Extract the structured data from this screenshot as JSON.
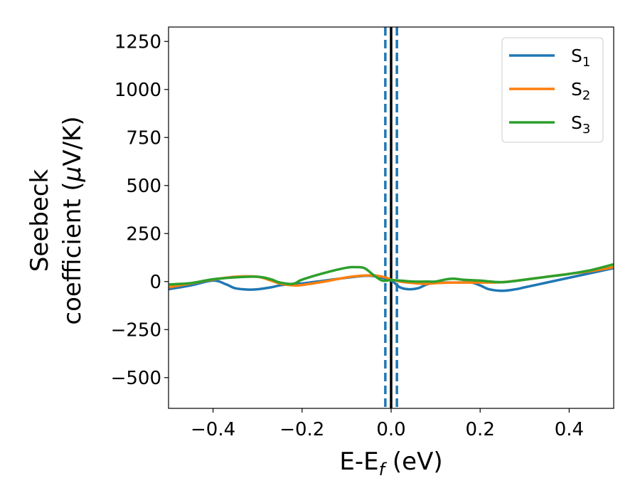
{
  "chart_data": {
    "type": "line",
    "xlabel": {
      "main": "E-E",
      "sub": "f",
      "unit": " (eV)"
    },
    "ylabel": {
      "line1": "Seebeck",
      "line2_prefix": "coefficient  (",
      "mu": "μ",
      "line2_suffix": "V/K)"
    },
    "xlim": [
      -0.5,
      0.5
    ],
    "ylim": [
      -660,
      1325
    ],
    "xticks": [
      -0.4,
      -0.2,
      0.0,
      0.2,
      0.4
    ],
    "xtick_labels": [
      "−0.4",
      "−0.2",
      "0.0",
      "0.2",
      "0.4"
    ],
    "yticks": [
      -500,
      -250,
      0,
      250,
      500,
      750,
      1000,
      1250
    ],
    "ytick_labels": [
      "−500",
      "−250",
      "0",
      "250",
      "500",
      "750",
      "1000",
      "1250"
    ],
    "legend_position": "top-right",
    "vertical_lines": [
      {
        "x": 0.0,
        "style": "solid",
        "color": "#000000"
      },
      {
        "x": -0.013,
        "style": "dashed",
        "color": "#1f77b4"
      },
      {
        "x": 0.013,
        "style": "dashed",
        "color": "#1f77b4"
      }
    ],
    "series": [
      {
        "name": "S",
        "sub": "1",
        "color": "#1f77b4",
        "x": [
          -0.5,
          -0.45,
          -0.4,
          -0.37,
          -0.35,
          -0.32,
          -0.3,
          -0.27,
          -0.25,
          -0.22,
          -0.2,
          -0.15,
          -0.1,
          -0.07,
          -0.05,
          -0.03,
          0.0,
          0.02,
          0.04,
          0.06,
          0.08,
          0.1,
          0.12,
          0.15,
          0.18,
          0.2,
          0.22,
          0.25,
          0.28,
          0.3,
          0.35,
          0.4,
          0.45,
          0.5
        ],
        "y": [
          -40,
          -20,
          5,
          -15,
          -35,
          -42,
          -40,
          -30,
          -20,
          -12,
          -10,
          5,
          20,
          28,
          30,
          25,
          5,
          -30,
          -40,
          -35,
          -15,
          -5,
          -5,
          -5,
          -5,
          -20,
          -40,
          -48,
          -40,
          -30,
          -5,
          20,
          45,
          70
        ]
      },
      {
        "name": "S",
        "sub": "2",
        "color": "#ff7f0e",
        "x": [
          -0.5,
          -0.45,
          -0.4,
          -0.35,
          -0.3,
          -0.27,
          -0.25,
          -0.22,
          -0.2,
          -0.15,
          -0.1,
          -0.07,
          -0.05,
          -0.03,
          -0.01,
          0.0,
          0.02,
          0.05,
          0.08,
          0.1,
          0.15,
          0.2,
          0.25,
          0.3,
          0.35,
          0.4,
          0.45,
          0.5
        ],
        "y": [
          -30,
          -10,
          10,
          25,
          25,
          5,
          -10,
          -20,
          -18,
          0,
          22,
          30,
          32,
          30,
          20,
          10,
          0,
          -8,
          -12,
          -8,
          -5,
          -5,
          -3,
          10,
          25,
          40,
          55,
          75
        ]
      },
      {
        "name": "S",
        "sub": "3",
        "color": "#2ca02c",
        "x": [
          -0.5,
          -0.45,
          -0.4,
          -0.35,
          -0.3,
          -0.27,
          -0.25,
          -0.22,
          -0.2,
          -0.15,
          -0.1,
          -0.08,
          -0.06,
          -0.04,
          -0.02,
          0.0,
          0.02,
          0.05,
          0.08,
          0.1,
          0.12,
          0.14,
          0.16,
          0.2,
          0.25,
          0.3,
          0.35,
          0.4,
          0.45,
          0.5
        ],
        "y": [
          -15,
          -8,
          12,
          22,
          25,
          12,
          -5,
          -12,
          10,
          45,
          72,
          75,
          70,
          35,
          5,
          8,
          5,
          0,
          0,
          0,
          10,
          15,
          10,
          5,
          -3,
          10,
          25,
          40,
          60,
          90
        ]
      }
    ]
  }
}
